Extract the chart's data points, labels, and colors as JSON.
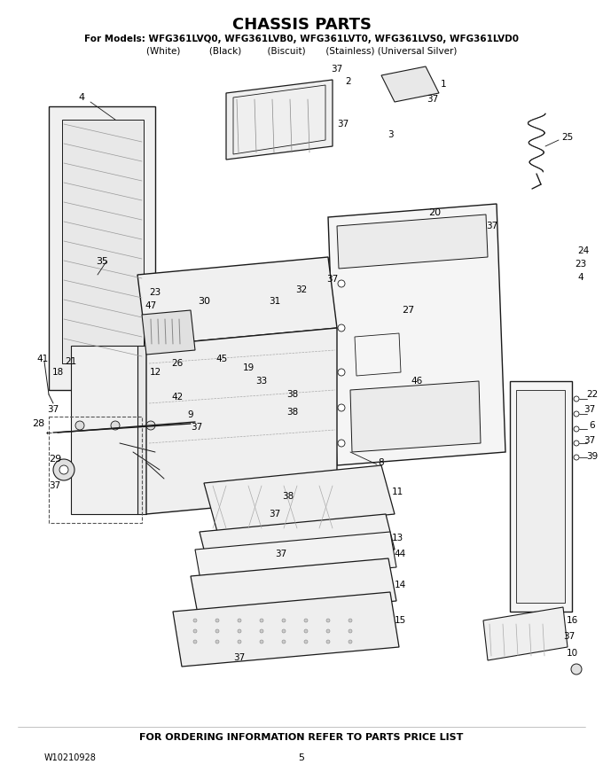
{
  "title": "CHASSIS PARTS",
  "models_line": "For Models: WFG361LVQ0, WFG361LVB0, WFG361LVT0, WFG361LVS0, WFG361LVD0",
  "colors_line": "(White)          (Black)         (Biscuit)       (Stainless) (Universal Silver)",
  "footer_left": "W10210928",
  "footer_center": "5",
  "footer_bottom": "FOR ORDERING INFORMATION REFER TO PARTS PRICE LIST",
  "bg_color": "#ffffff",
  "text_color": "#000000",
  "fig_width": 6.8,
  "fig_height": 8.8,
  "dpi": 100
}
